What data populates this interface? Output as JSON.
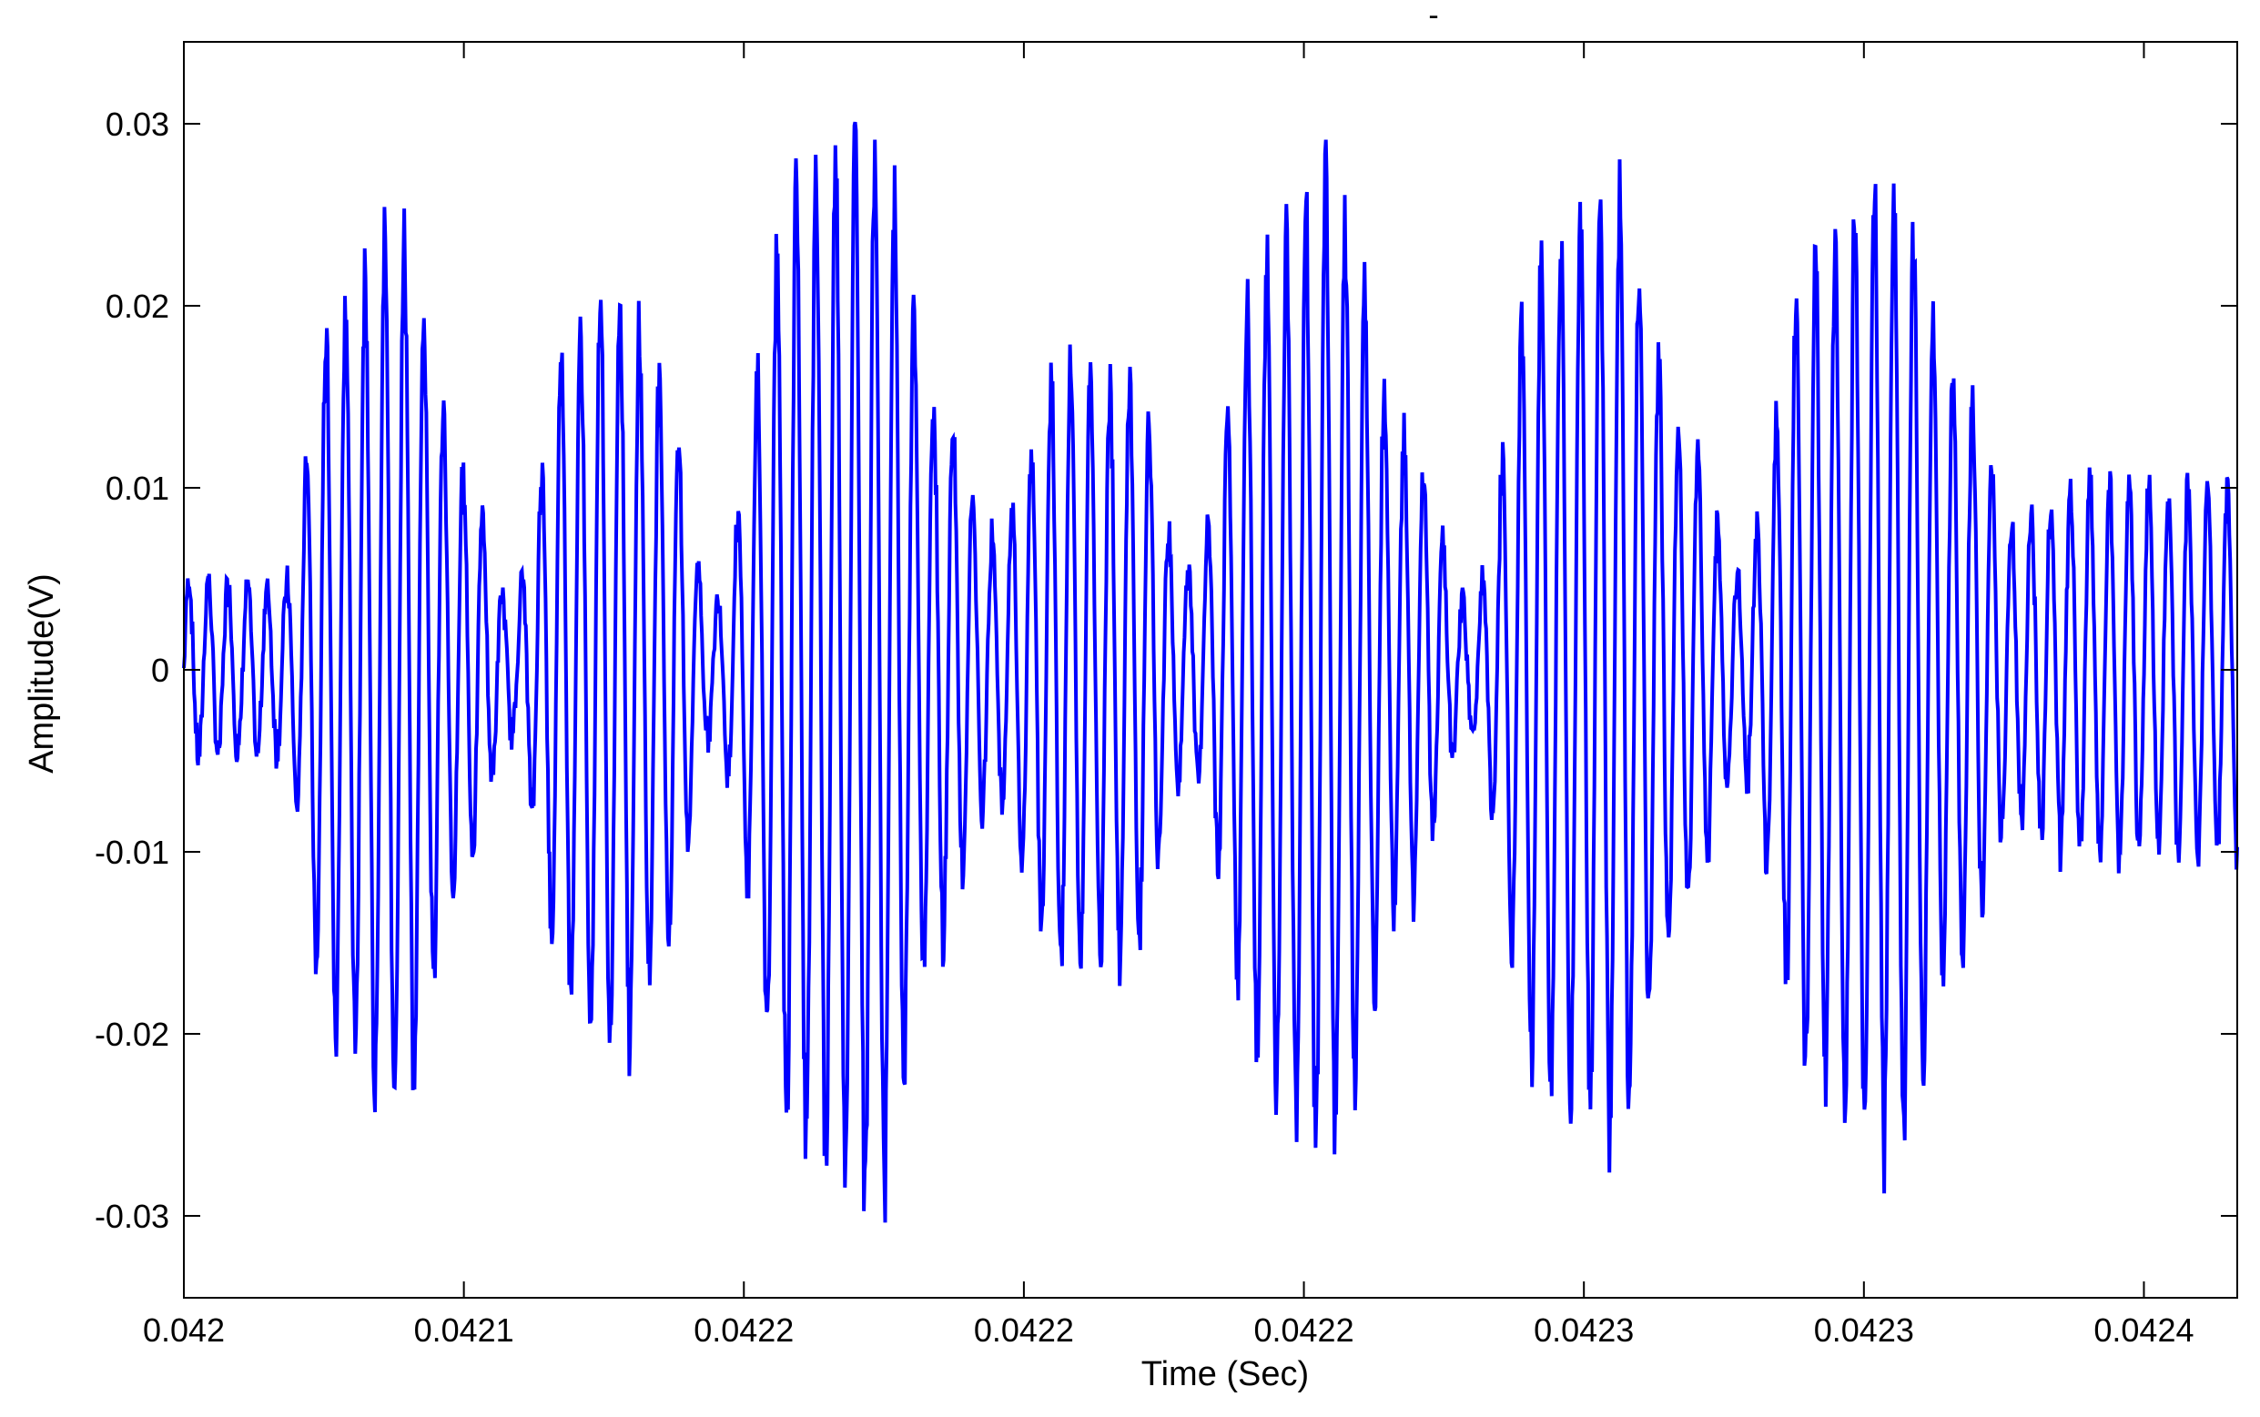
{
  "figure": {
    "title": "-"
  },
  "chart_data": {
    "type": "line",
    "title": "-",
    "xlabel": "Time (Sec)",
    "ylabel": "Amplitude(V)",
    "x_tick_labels": [
      "0.042",
      "0.0421",
      "0.0422",
      "0.0422",
      "0.0422",
      "0.0423",
      "0.0423",
      "0.0424"
    ],
    "y_tick_labels": [
      "-0.03",
      "-0.02",
      "-0.01",
      "0",
      "0.01",
      "0.02",
      "0.03"
    ],
    "x_range": [
      0.042,
      0.04244
    ],
    "ylim": [
      -0.0345,
      0.0345
    ],
    "x_ticks": [
      0.042,
      0.04206,
      0.04212,
      0.04218,
      0.04224,
      0.0423,
      0.04236,
      0.04242
    ],
    "y_ticks": [
      -0.03,
      -0.02,
      -0.01,
      0,
      0.01,
      0.02,
      0.03
    ],
    "grid": false,
    "series": [
      {
        "color": "#0000ff",
        "envelope_peaks": [
          {
            "x": 0.042,
            "y": 0.0055
          },
          {
            "x": 0.042021,
            "y": 0.005
          },
          {
            "x": 0.042032,
            "y": 0.022
          },
          {
            "x": 0.042046,
            "y": 0.026
          },
          {
            "x": 0.04206,
            "y": 0.012
          },
          {
            "x": 0.04207,
            "y": 0.004
          },
          {
            "x": 0.042083,
            "y": 0.02
          },
          {
            "x": 0.042093,
            "y": 0.023
          },
          {
            "x": 0.042103,
            "y": 0.017
          },
          {
            "x": 0.042113,
            "y": 0.004
          },
          {
            "x": 0.042132,
            "y": 0.029
          },
          {
            "x": 0.042147,
            "y": 0.032
          },
          {
            "x": 0.042162,
            "y": 0.016
          },
          {
            "x": 0.042173,
            "y": 0.008
          },
          {
            "x": 0.042189,
            "y": 0.018
          },
          {
            "x": 0.042203,
            "y": 0.017
          },
          {
            "x": 0.042215,
            "y": 0.006
          },
          {
            "x": 0.042233,
            "y": 0.025
          },
          {
            "x": 0.042245,
            "y": 0.029
          },
          {
            "x": 0.042262,
            "y": 0.014
          },
          {
            "x": 0.042275,
            "y": 0.004
          },
          {
            "x": 0.042292,
            "y": 0.025
          },
          {
            "x": 0.042307,
            "y": 0.028
          },
          {
            "x": 0.042322,
            "y": 0.014
          },
          {
            "x": 0.042333,
            "y": 0.006
          },
          {
            "x": 0.04235,
            "y": 0.025
          },
          {
            "x": 0.042366,
            "y": 0.029
          },
          {
            "x": 0.042381,
            "y": 0.017
          },
          {
            "x": 0.042392,
            "y": 0.009
          },
          {
            "x": 0.042406,
            "y": 0.011
          }
        ]
      }
    ]
  }
}
